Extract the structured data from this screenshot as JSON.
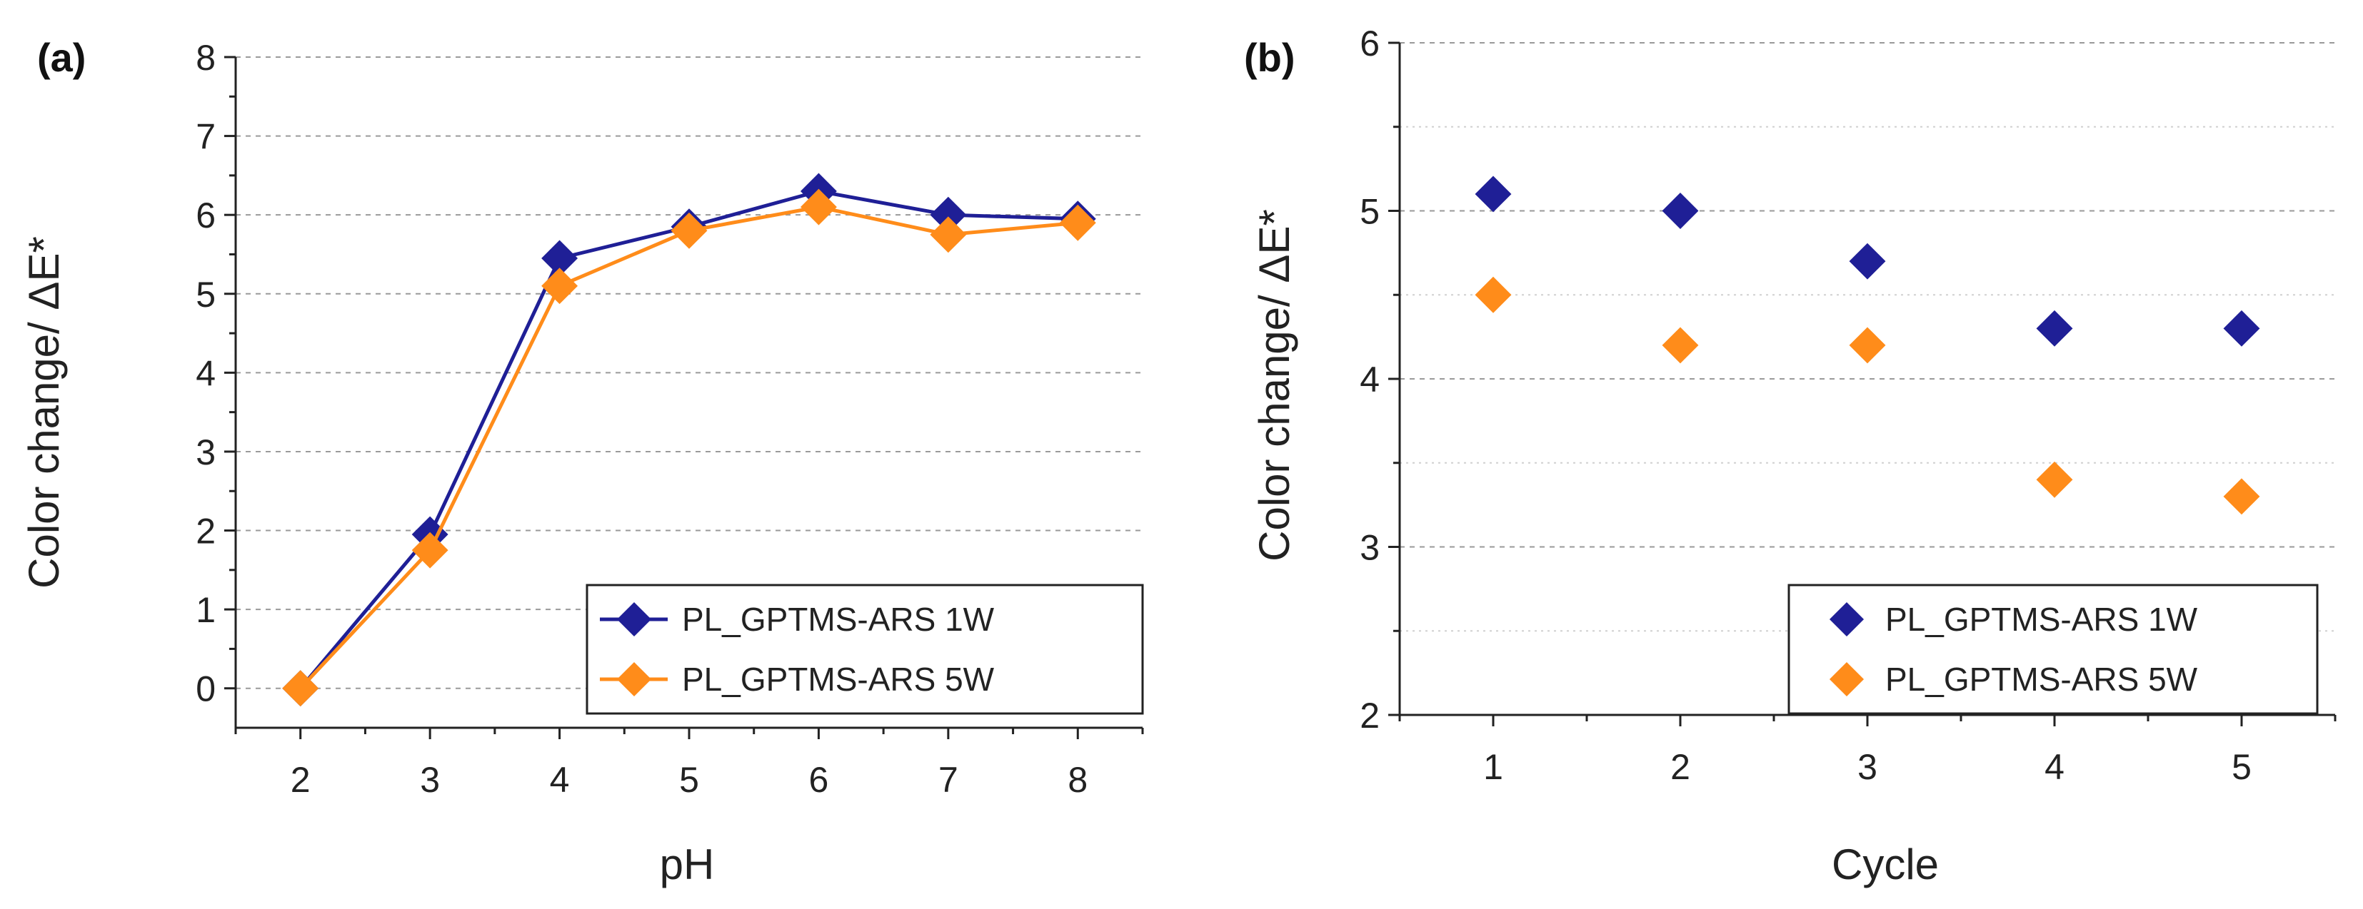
{
  "chart_data": [
    {
      "type": "line",
      "panel_label": "(a)",
      "xlabel": "pH",
      "ylabel": "Color change/ ΔE*",
      "x": [
        2,
        3,
        4,
        5,
        6,
        7,
        8
      ],
      "xlim": [
        1.5,
        8.5
      ],
      "ylim": [
        -0.5,
        8
      ],
      "yticks": [
        0,
        1,
        2,
        3,
        4,
        5,
        6,
        7,
        8
      ],
      "grid": true,
      "legend_position": "bottom-right",
      "series": [
        {
          "name": "PL_GPTMS-ARS 1W",
          "color": "#1f1f96",
          "values": [
            0,
            1.95,
            5.45,
            5.85,
            6.3,
            6.0,
            5.95
          ]
        },
        {
          "name": "PL_GPTMS-ARS 5W",
          "color": "#ff8c1a",
          "values": [
            0,
            1.75,
            5.1,
            5.8,
            6.1,
            5.75,
            5.9
          ]
        }
      ]
    },
    {
      "type": "scatter",
      "panel_label": "(b)",
      "xlabel": "Cycle",
      "ylabel": "Color change/ ΔE*",
      "x": [
        1,
        2,
        3,
        4,
        5
      ],
      "xlim": [
        0.5,
        5.5
      ],
      "ylim": [
        2,
        6
      ],
      "yticks": [
        2,
        3,
        4,
        5,
        6
      ],
      "grid": true,
      "legend_position": "bottom-right",
      "series": [
        {
          "name": "PL_GPTMS-ARS 1W",
          "color": "#1f1f96",
          "values": [
            5.1,
            5.0,
            4.7,
            4.3,
            4.3
          ]
        },
        {
          "name": "PL_GPTMS-ARS 5W",
          "color": "#ff8c1a",
          "values": [
            4.5,
            4.2,
            4.2,
            3.4,
            3.3
          ]
        }
      ]
    }
  ]
}
